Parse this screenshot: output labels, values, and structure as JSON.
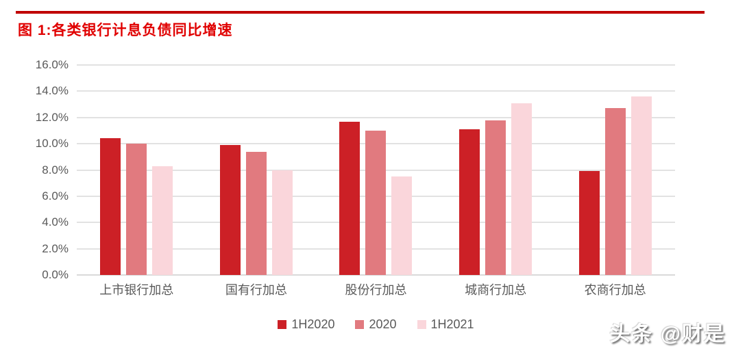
{
  "header": {
    "title": "图 1:各类银行计息负债同比增速"
  },
  "colors": {
    "title_red": "#e00000",
    "rule_red": "#c00000",
    "series_1h2020": "#cc2026",
    "series_2020": "#e17a7f",
    "series_1h2021": "#fad6db",
    "gridline": "#e2e2e2",
    "axis_text": "#595959"
  },
  "chart_data": {
    "type": "bar",
    "title": "图 1:各类银行计息负债同比增速",
    "categories": [
      "上市银行加总",
      "国有行加总",
      "股份行加总",
      "城商行加总",
      "农商行加总"
    ],
    "series": [
      {
        "name": "1H2020",
        "color": "#cc2026",
        "values": [
          10.4,
          9.9,
          11.7,
          11.1,
          7.9
        ]
      },
      {
        "name": "2020",
        "color": "#e17a7f",
        "values": [
          10.0,
          9.4,
          11.0,
          11.8,
          12.7
        ]
      },
      {
        "name": "1H2021",
        "color": "#fad6db",
        "values": [
          8.3,
          8.0,
          7.5,
          13.1,
          13.6
        ]
      }
    ],
    "xlabel": "",
    "ylabel": "",
    "ylim": [
      0,
      16
    ],
    "ytick_step": 2,
    "yticks": [
      "0.0%",
      "2.0%",
      "4.0%",
      "6.0%",
      "8.0%",
      "10.0%",
      "12.0%",
      "14.0%",
      "16.0%"
    ],
    "grid": true,
    "legend_position": "bottom"
  },
  "watermark": {
    "text": "头条 @财是"
  }
}
